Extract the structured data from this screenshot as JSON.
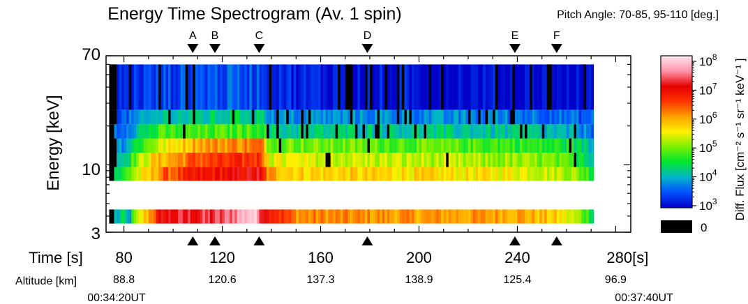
{
  "chart_data": {
    "type": "heatmap",
    "title": "Energy Time Spectrogram (Av. 1 spin)",
    "subtitle": "Pitch Angle: 70-85, 95-110 [deg.]",
    "ylabel": "Energy [keV]",
    "y_scale": "log",
    "ylim": [
      3,
      70
    ],
    "y_ticks": [
      "70",
      "10",
      "3"
    ],
    "x_label": "Time [s]",
    "xlim": [
      75,
      285
    ],
    "x_ticks": [
      {
        "value": 80,
        "label": "80"
      },
      {
        "value": 120,
        "label": "120"
      },
      {
        "value": 160,
        "label": "160"
      },
      {
        "value": 200,
        "label": "200"
      },
      {
        "value": 240,
        "label": "240"
      },
      {
        "value": 280,
        "label": "280[s]"
      }
    ],
    "altitude_label": "Altitude [km]",
    "altitude": [
      {
        "time": 80,
        "label": "88.8"
      },
      {
        "time": 120,
        "label": "120.6"
      },
      {
        "time": 160,
        "label": "137.3"
      },
      {
        "time": 200,
        "label": "138.9"
      },
      {
        "time": 240,
        "label": "125.4"
      },
      {
        "time": 280,
        "label": "96.9"
      }
    ],
    "ut_start": "00:34:20UT",
    "ut_end": "00:37:40UT",
    "markers": [
      {
        "label": "A",
        "time": 108
      },
      {
        "label": "B",
        "time": 117
      },
      {
        "label": "C",
        "time": 135
      },
      {
        "label": "D",
        "time": 179
      },
      {
        "label": "E",
        "time": 239
      },
      {
        "label": "F",
        "time": 256
      }
    ],
    "data_time_range": [
      74,
      271
    ],
    "energy_bins_keV": [
      {
        "low": 3.5,
        "high": 4.5,
        "intensity": [
          [
            74,
            -1
          ],
          [
            78,
            4.0
          ],
          [
            80,
            4.3
          ],
          [
            82,
            3.7
          ],
          [
            84,
            4.8
          ],
          [
            90,
            6.0
          ],
          [
            96,
            7.0
          ],
          [
            120,
            7.2
          ],
          [
            132,
            7.9
          ],
          [
            138,
            7.0
          ],
          [
            150,
            6.1
          ],
          [
            200,
            6.0
          ],
          [
            240,
            6.0
          ],
          [
            255,
            5.7
          ],
          [
            265,
            5.1
          ],
          [
            271,
            4.5
          ]
        ]
      },
      {
        "low": 7.5,
        "high": 9.6,
        "intensity": [
          [
            74,
            -1
          ],
          [
            79,
            4.4
          ],
          [
            84,
            5.2
          ],
          [
            90,
            5.6
          ],
          [
            95,
            6.2
          ],
          [
            110,
            6.7
          ],
          [
            135,
            7.0
          ],
          [
            139,
            6.0
          ],
          [
            150,
            5.7
          ],
          [
            200,
            5.6
          ],
          [
            240,
            5.5
          ],
          [
            262,
            5.2
          ],
          [
            271,
            4.6
          ]
        ]
      },
      {
        "low": 9.6,
        "high": 12.4,
        "intensity": [
          [
            74,
            -1
          ],
          [
            80,
            4.2
          ],
          [
            85,
            5.0
          ],
          [
            92,
            5.7
          ],
          [
            110,
            6.4
          ],
          [
            136,
            6.6
          ],
          [
            139,
            5.4
          ],
          [
            170,
            5.3
          ],
          [
            210,
            5.2
          ],
          [
            250,
            5.0
          ],
          [
            266,
            4.6
          ],
          [
            271,
            4.2
          ]
        ]
      },
      {
        "low": 12.4,
        "high": 16.0,
        "intensity": [
          [
            74,
            -1
          ],
          [
            80,
            3.9
          ],
          [
            86,
            4.6
          ],
          [
            94,
            5.3
          ],
          [
            110,
            6.0
          ],
          [
            136,
            6.2
          ],
          [
            139,
            5.0
          ],
          [
            180,
            4.9
          ],
          [
            230,
            4.8
          ],
          [
            262,
            4.5
          ],
          [
            271,
            4.0
          ]
        ]
      },
      {
        "low": 16.0,
        "high": 20.6,
        "intensity": [
          [
            74,
            -1
          ],
          [
            79,
            3.7
          ],
          [
            88,
            4.3
          ],
          [
            95,
            4.7
          ],
          [
            136,
            4.8
          ],
          [
            140,
            4.2
          ],
          [
            200,
            4.2
          ],
          [
            250,
            4.1
          ],
          [
            271,
            3.7
          ]
        ]
      },
      {
        "low": 20.6,
        "high": 26.7,
        "intensity": [
          [
            74,
            -1
          ],
          [
            80,
            3.5
          ],
          [
            95,
            4.1
          ],
          [
            136,
            4.3
          ],
          [
            140,
            3.8
          ],
          [
            200,
            3.8
          ],
          [
            250,
            3.7
          ],
          [
            271,
            3.5
          ]
        ]
      },
      {
        "low": 26.7,
        "high": 60.0,
        "intensity": [
          [
            74,
            -1
          ],
          [
            80,
            3.3
          ],
          [
            110,
            3.5
          ],
          [
            136,
            3.5
          ],
          [
            150,
            3.2
          ],
          [
            200,
            3.1
          ],
          [
            271,
            3.0
          ]
        ]
      }
    ],
    "colorbar": {
      "label": "Diff. Flux [cm⁻² s⁻¹ sr⁻¹ keV⁻¹ ]",
      "scale": "log",
      "range": [
        3,
        8
      ],
      "ticks": [
        {
          "exp": 8,
          "base": "10",
          "sup": "8"
        },
        {
          "exp": 7,
          "base": "10",
          "sup": "7"
        },
        {
          "exp": 6,
          "base": "10",
          "sup": "6"
        },
        {
          "exp": 5,
          "base": "10",
          "sup": "5"
        },
        {
          "exp": 4,
          "base": "10",
          "sup": "4"
        },
        {
          "exp": 3,
          "base": "10",
          "sup": "3"
        }
      ],
      "zero_label": "0",
      "zero_color": "#000000",
      "colormap": [
        "#0000c8",
        "#0050ff",
        "#00b4c8",
        "#00e632",
        "#78f000",
        "#fff000",
        "#ffa000",
        "#ff3200",
        "#e60000",
        "#ff96aa",
        "#ffe6f0"
      ]
    }
  }
}
